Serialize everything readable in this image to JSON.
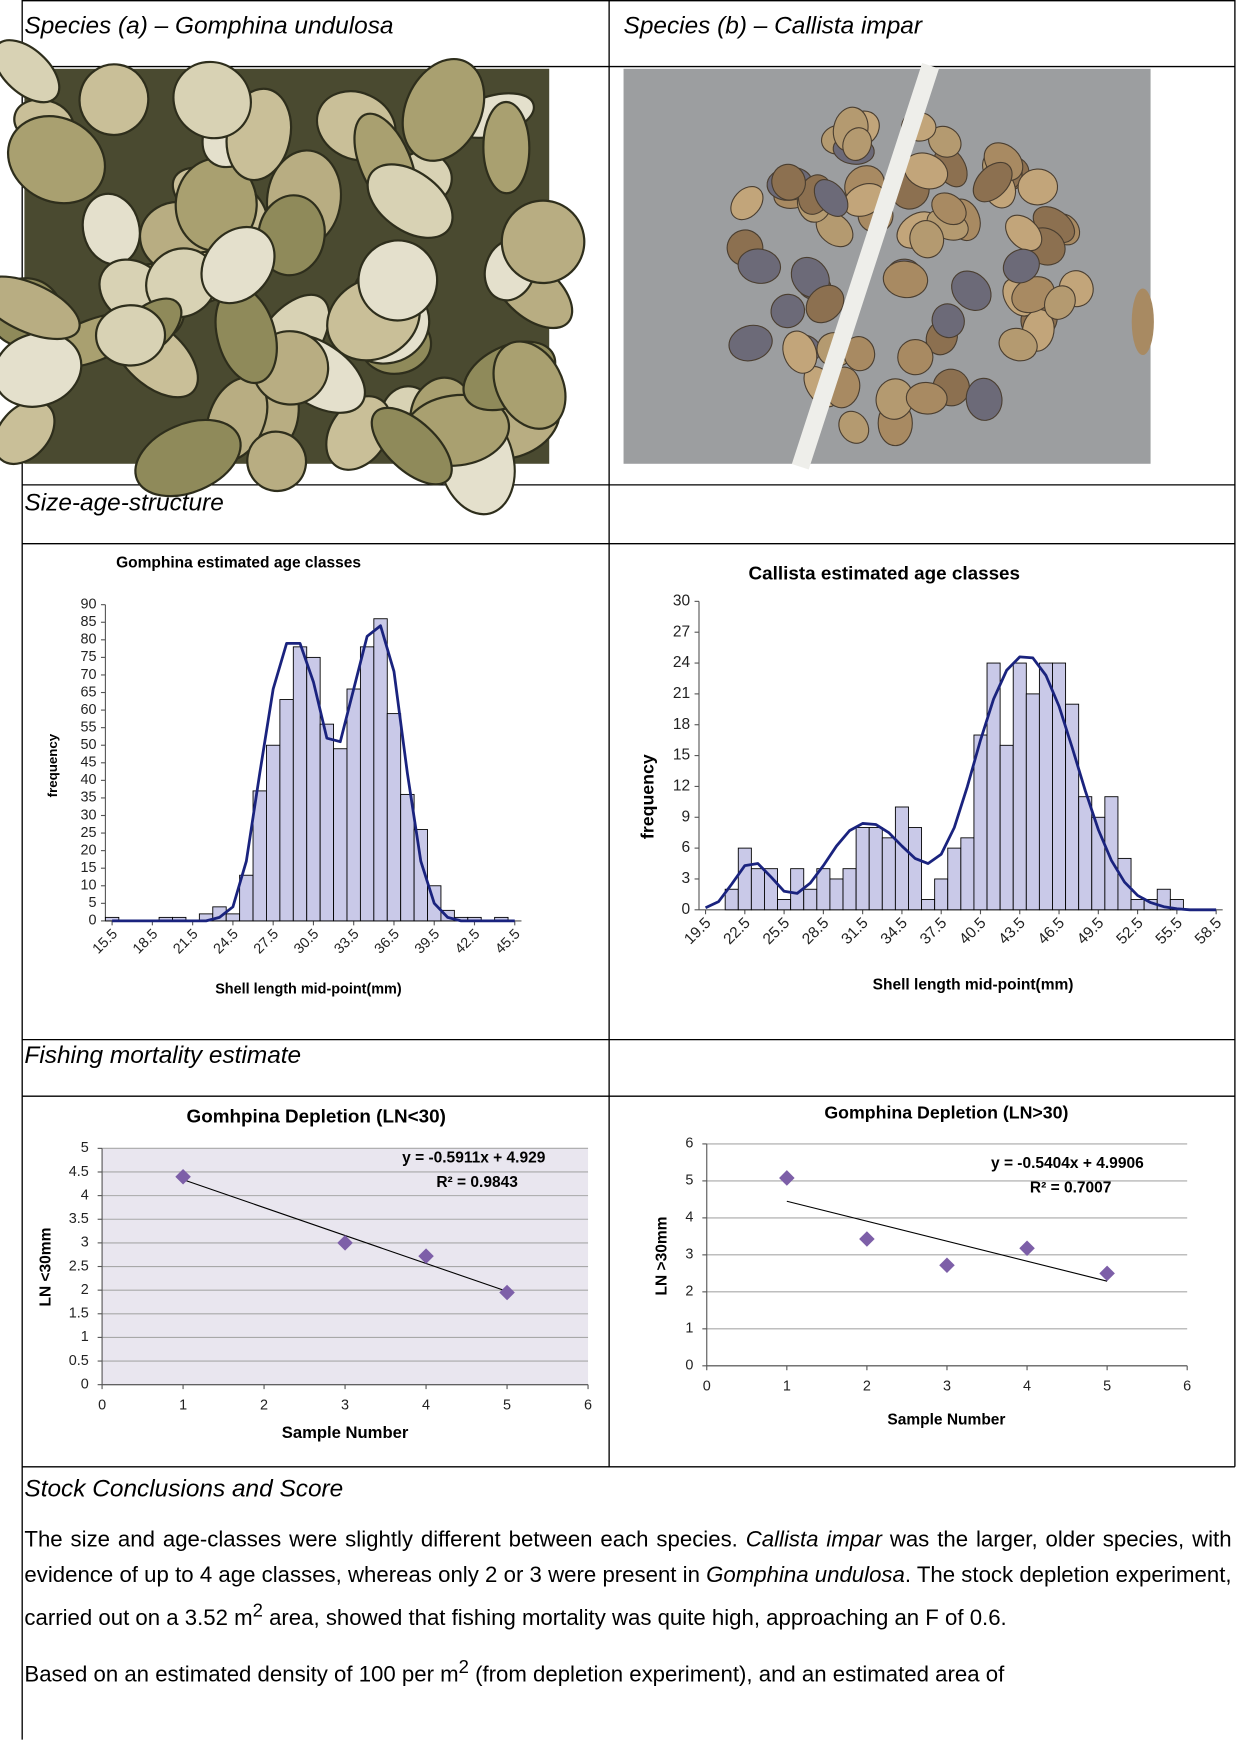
{
  "table": {
    "header": [
      "Species (a) – Gomphina undulosa",
      "Species (b) – Callista impar"
    ],
    "size_heading": "Size-age-structure",
    "mortality_heading": "Fishing mortality estimate"
  },
  "chart_data": [
    {
      "type": "bar",
      "title": "Gomphina estimated age classes",
      "x_label": "Shell length mid-point(mm)",
      "y_label": "frequency",
      "x": [
        15.5,
        16.5,
        17.5,
        18.5,
        19.5,
        20.5,
        21.5,
        22.5,
        23.5,
        24.5,
        25.5,
        26.5,
        27.5,
        28.5,
        29.5,
        30.5,
        31.5,
        32.5,
        33.5,
        34.5,
        35.5,
        36.5,
        37.5,
        38.5,
        39.5,
        40.5,
        41.5,
        42.5,
        43.5,
        44.5,
        45.5
      ],
      "values": [
        1,
        0,
        0,
        0,
        1,
        1,
        0,
        2,
        4,
        2,
        13,
        37,
        50,
        63,
        78,
        75,
        56,
        49,
        66,
        78,
        86,
        59,
        36,
        26,
        10,
        3,
        1,
        1,
        0,
        1,
        0
      ],
      "color": "#c9c9e8",
      "curve": {
        "values": [
          0,
          0,
          0,
          0,
          0,
          0,
          0,
          0,
          1,
          4,
          17,
          42,
          66,
          79,
          79,
          68,
          52,
          51,
          66,
          81,
          84,
          71,
          42,
          17,
          5,
          1,
          0,
          0,
          0,
          0,
          0
        ],
        "color": "#1a237e"
      },
      "xlim": [
        15,
        46
      ],
      "xticks": [
        15.5,
        18.5,
        21.5,
        24.5,
        27.5,
        30.5,
        33.5,
        36.5,
        39.5,
        42.5,
        45.5
      ],
      "ylim": [
        0,
        90
      ],
      "yticks": [
        0,
        5,
        10,
        15,
        20,
        25,
        30,
        35,
        40,
        45,
        50,
        55,
        60,
        65,
        70,
        75,
        80,
        85,
        90
      ]
    },
    {
      "type": "bar",
      "title": "Callista estimated age classes",
      "x_label": "Shell length mid-point(mm)",
      "y_label": "frequency",
      "x": [
        19.5,
        20.5,
        21.5,
        22.5,
        23.5,
        24.5,
        25.5,
        26.5,
        27.5,
        28.5,
        29.5,
        30.5,
        31.5,
        32.5,
        33.5,
        34.5,
        35.5,
        36.5,
        37.5,
        38.5,
        39.5,
        40.5,
        41.5,
        42.5,
        43.5,
        44.5,
        45.5,
        46.5,
        47.5,
        48.5,
        49.5,
        50.5,
        51.5,
        52.5,
        53.5,
        54.5,
        55.5,
        56.5,
        57.5,
        58.5
      ],
      "values": [
        0,
        0,
        2,
        6,
        4,
        4,
        1,
        4,
        2,
        4,
        3,
        4,
        8,
        8,
        7,
        10,
        8,
        1,
        3,
        6,
        7,
        17,
        24,
        16,
        24,
        21,
        24,
        24,
        20,
        11,
        9,
        11,
        5,
        1,
        1,
        2,
        1,
        0,
        0,
        0
      ],
      "color": "#c9c9e8",
      "curve": {
        "values": [
          0.2,
          0.8,
          2.5,
          4.3,
          4.5,
          3.2,
          1.8,
          1.6,
          2.6,
          4.3,
          6.2,
          7.7,
          8.4,
          8.3,
          7.5,
          6.2,
          5,
          4.5,
          5.4,
          8,
          12,
          16.5,
          20.5,
          23.3,
          24.6,
          24.5,
          22.8,
          19.8,
          15.8,
          11.6,
          7.8,
          4.8,
          2.7,
          1.4,
          0.7,
          0.3,
          0.1,
          0,
          0,
          0
        ],
        "color": "#1a237e"
      },
      "xlim": [
        19,
        59
      ],
      "xticks": [
        19.5,
        22.5,
        25.5,
        28.5,
        31.5,
        34.5,
        37.5,
        40.5,
        43.5,
        46.5,
        49.5,
        52.5,
        55.5,
        58.5
      ],
      "ylim": [
        0,
        30
      ],
      "yticks": [
        0,
        3,
        6,
        9,
        12,
        15,
        18,
        21,
        24,
        27,
        30
      ]
    },
    {
      "type": "scatter",
      "title": "Gomhpina Depletion (LN<30)",
      "x_label": "Sample Number",
      "y_label": "LN <30mm",
      "x": [
        1,
        3,
        4,
        5
      ],
      "values": [
        4.4,
        3,
        2.72,
        1.95
      ],
      "color": "#7d5fa8",
      "xlim": [
        0,
        6
      ],
      "xticks": [
        0,
        1,
        2,
        3,
        4,
        5,
        6
      ],
      "ylim": [
        0,
        5
      ],
      "yticks": [
        0,
        0.5,
        1,
        1.5,
        2,
        2.5,
        3,
        3.5,
        4,
        4.5,
        5
      ],
      "grid": true,
      "plot_background": "#e9e6ef",
      "trendline": {
        "slope": -0.5911,
        "intercept": 4.929,
        "equation": "y = -0.5911x + 4.929",
        "r_squared": 0.9843,
        "r_squared_label": "R² = 0.9843",
        "color": "#000000"
      }
    },
    {
      "type": "scatter",
      "title": "Gomphina Depletion (LN>30)",
      "x_label": "Sample Number",
      "y_label": "LN >30mm",
      "x": [
        1,
        2,
        3,
        4,
        5
      ],
      "values": [
        5.08,
        3.43,
        2.72,
        3.18,
        2.5
      ],
      "color": "#7d5fa8",
      "xlim": [
        0,
        6
      ],
      "xticks": [
        0,
        1,
        2,
        3,
        4,
        5,
        6
      ],
      "ylim": [
        0,
        6
      ],
      "yticks": [
        0,
        1,
        2,
        3,
        4,
        5,
        6
      ],
      "grid": true,
      "plot_background": "#ffffff",
      "trendline": {
        "slope": -0.5404,
        "intercept": 4.9906,
        "equation": "y = -0.5404x + 4.9906",
        "r_squared": 0.7007,
        "r_squared_label": "R² = 0.7007",
        "color": "#000000"
      }
    }
  ],
  "conclusions": {
    "heading": "Stock Conclusions and Score",
    "paragraphs": [
      [
        "The size and age-classes were slightly different between each species. ",
        "Callista impar",
        " was the larger, older species, with evidence of up to 4 age classes, whereas only 2 or 3 were present in ",
        "Gomphina undulosa",
        ".  The stock depletion experiment, carried out on a 3.52 m",
        "2",
        " area, showed that fishing mortality was quite high, approaching an F of 0.6."
      ],
      [
        "Based on an estimated density of 100 per m",
        "2",
        " (from depletion experiment), and an estimated area of"
      ]
    ]
  }
}
